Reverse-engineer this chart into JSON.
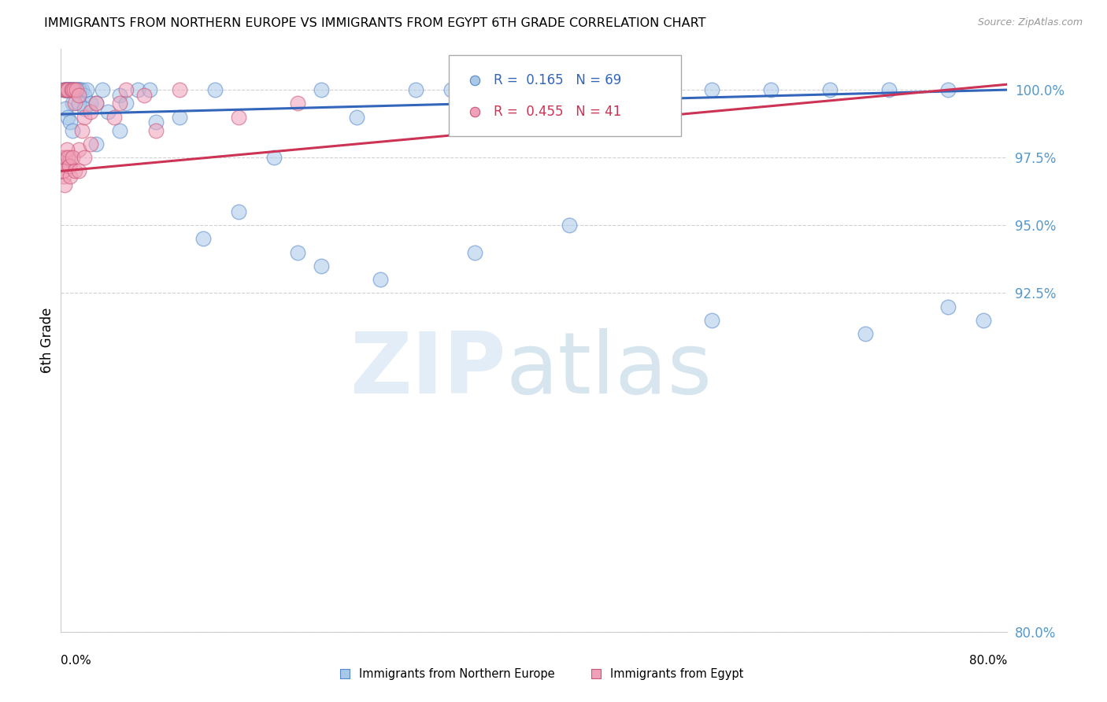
{
  "title": "IMMIGRANTS FROM NORTHERN EUROPE VS IMMIGRANTS FROM EGYPT 6TH GRADE CORRELATION CHART",
  "source": "Source: ZipAtlas.com",
  "ylabel": "6th Grade",
  "ytick_labels": [
    "100.0%",
    "97.5%",
    "95.0%",
    "92.5%",
    "80.0%"
  ],
  "ytick_values": [
    100.0,
    97.5,
    95.0,
    92.5,
    80.0
  ],
  "xlim": [
    0.0,
    80.0
  ],
  "ylim": [
    80.0,
    101.5
  ],
  "legend_blue_R": "0.165",
  "legend_blue_N": "69",
  "legend_pink_R": "0.455",
  "legend_pink_N": "41",
  "blue_color": "#A8C8E8",
  "pink_color": "#F0A0B8",
  "blue_edge_color": "#5588CC",
  "pink_edge_color": "#CC5577",
  "blue_line_color": "#3366BB",
  "pink_line_color": "#CC3355",
  "blue_scatter_x": [
    0.2,
    0.3,
    0.4,
    0.5,
    0.5,
    0.6,
    0.6,
    0.7,
    0.7,
    0.8,
    0.8,
    0.9,
    0.9,
    1.0,
    1.0,
    1.1,
    1.2,
    1.3,
    1.4,
    1.5,
    1.5,
    1.6,
    1.8,
    2.0,
    2.2,
    2.5,
    3.0,
    3.5,
    4.0,
    5.0,
    5.5,
    6.5,
    7.5,
    10.0,
    13.0,
    18.0,
    22.0,
    25.0,
    30.0,
    33.0,
    38.0,
    40.0,
    45.0,
    50.0,
    55.0,
    60.0,
    65.0,
    70.0,
    75.0,
    0.4,
    0.6,
    0.8,
    1.0,
    1.5,
    2.0,
    3.0,
    5.0,
    8.0,
    12.0,
    15.0,
    20.0,
    22.0,
    27.0,
    35.0,
    43.0,
    55.0,
    68.0,
    75.0,
    78.0
  ],
  "blue_scatter_y": [
    100.0,
    100.0,
    100.0,
    100.0,
    100.0,
    100.0,
    100.0,
    100.0,
    100.0,
    100.0,
    100.0,
    100.0,
    100.0,
    100.0,
    99.5,
    100.0,
    100.0,
    100.0,
    100.0,
    100.0,
    100.0,
    100.0,
    100.0,
    99.8,
    100.0,
    99.5,
    99.5,
    100.0,
    99.2,
    99.8,
    99.5,
    100.0,
    100.0,
    99.0,
    100.0,
    97.5,
    100.0,
    99.0,
    100.0,
    100.0,
    100.0,
    100.0,
    100.0,
    100.0,
    100.0,
    100.0,
    100.0,
    100.0,
    100.0,
    99.3,
    99.0,
    98.8,
    98.5,
    99.5,
    99.3,
    98.0,
    98.5,
    98.8,
    94.5,
    95.5,
    94.0,
    93.5,
    93.0,
    94.0,
    95.0,
    91.5,
    91.0,
    92.0,
    91.5
  ],
  "pink_scatter_x": [
    0.1,
    0.15,
    0.2,
    0.25,
    0.3,
    0.35,
    0.4,
    0.5,
    0.6,
    0.7,
    0.8,
    0.9,
    1.0,
    1.1,
    1.2,
    1.3,
    1.5,
    1.5,
    1.8,
    2.0,
    2.5,
    2.5,
    3.0,
    4.5,
    5.0,
    5.5,
    7.0,
    8.0,
    10.0,
    15.0,
    20.0,
    0.2,
    0.3,
    0.5,
    0.6,
    0.7,
    0.8,
    1.0,
    1.2,
    1.5,
    2.0
  ],
  "pink_scatter_y": [
    97.5,
    97.2,
    97.0,
    96.8,
    100.0,
    97.5,
    100.0,
    100.0,
    100.0,
    97.2,
    97.5,
    100.0,
    100.0,
    100.0,
    99.5,
    100.0,
    99.8,
    97.8,
    98.5,
    99.0,
    99.2,
    98.0,
    99.5,
    99.0,
    99.5,
    100.0,
    99.8,
    98.5,
    100.0,
    99.0,
    99.5,
    97.0,
    96.5,
    97.8,
    97.5,
    97.2,
    96.8,
    97.5,
    97.0,
    97.0,
    97.5
  ]
}
